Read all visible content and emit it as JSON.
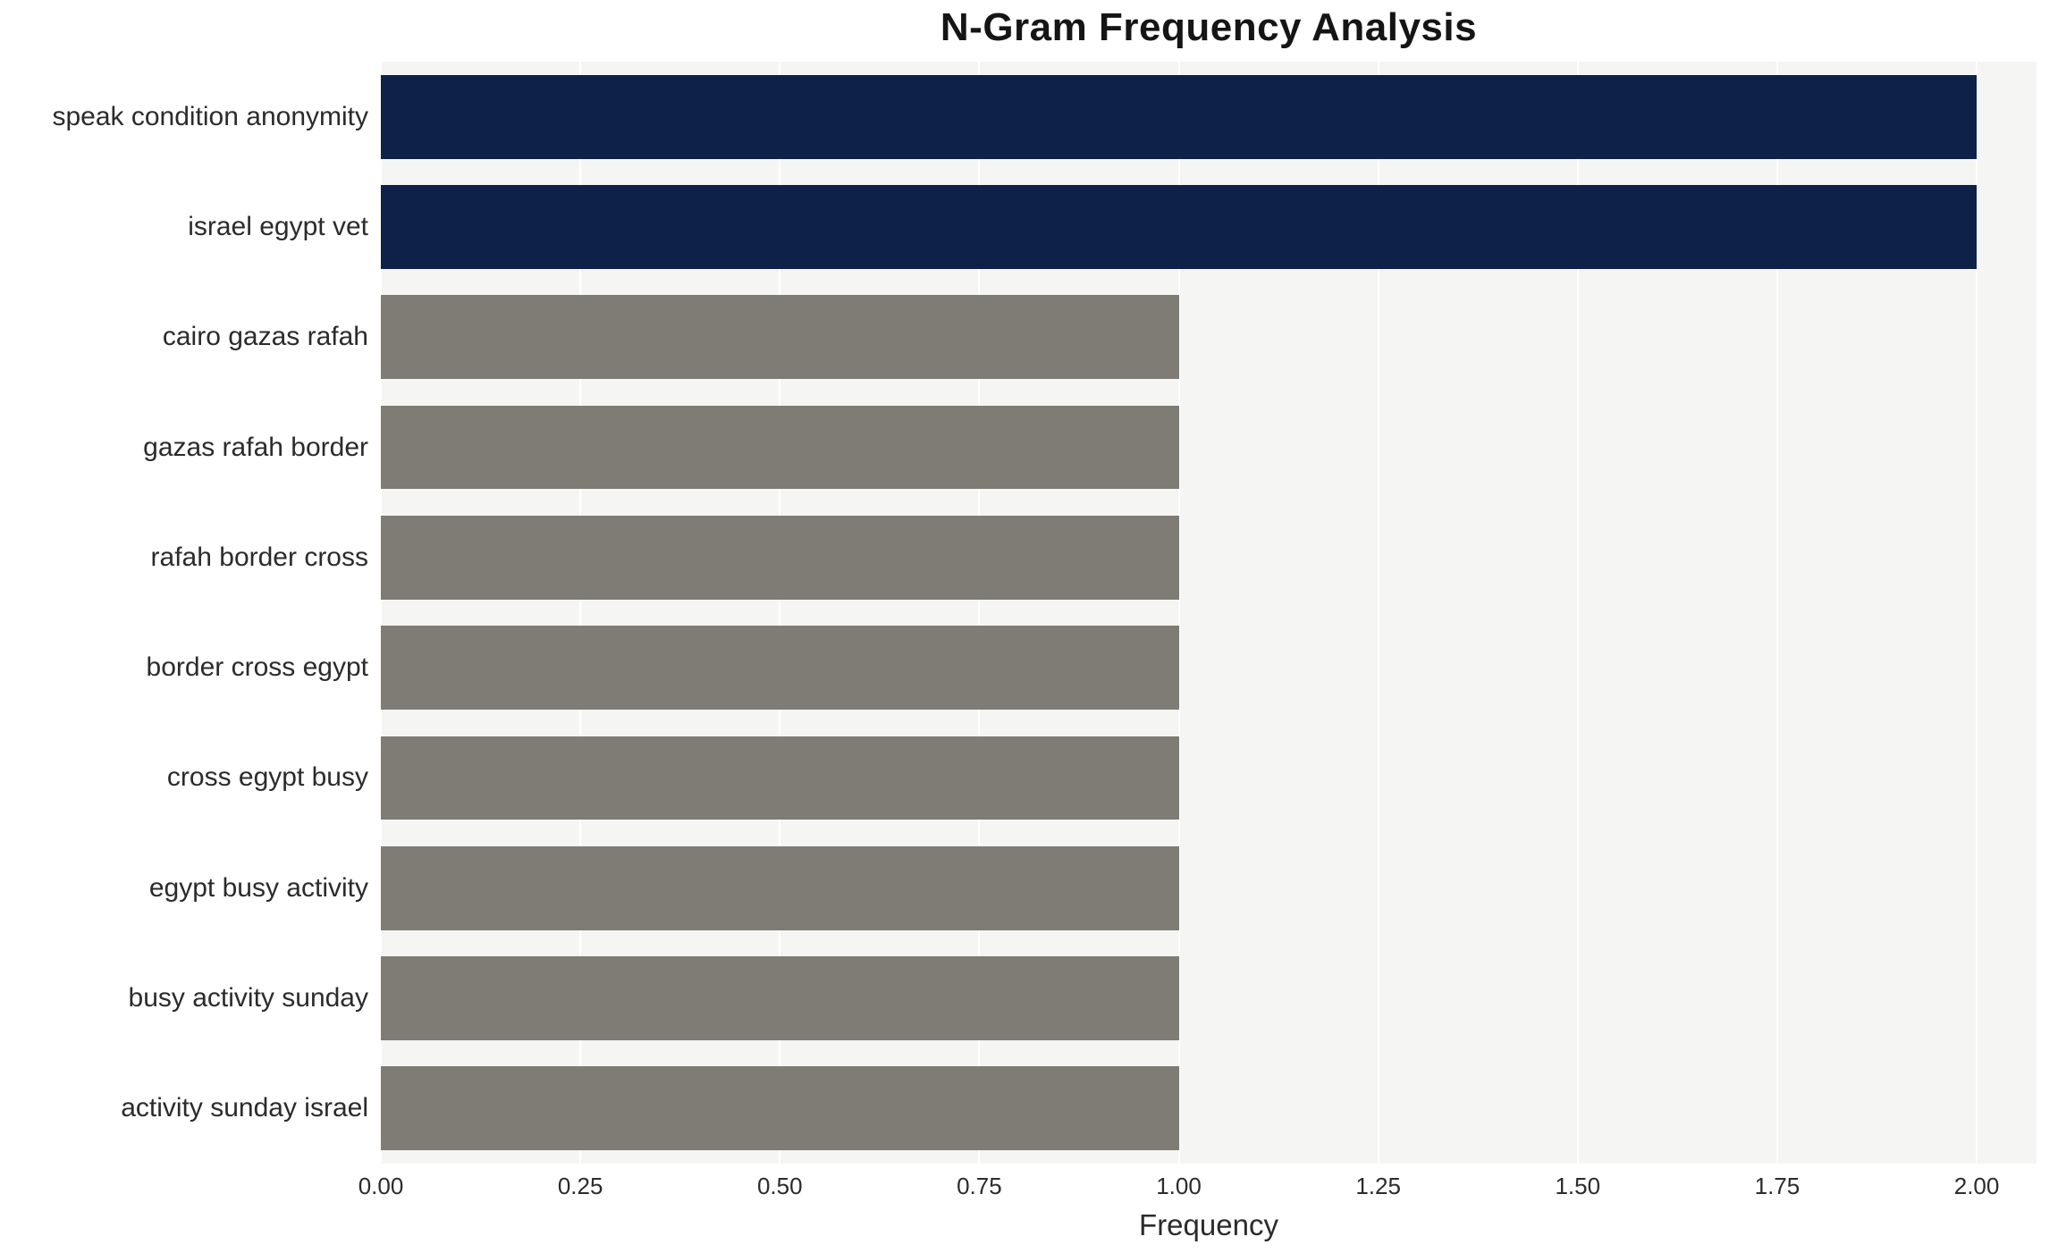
{
  "chart": {
    "title": "N-Gram Frequency Analysis",
    "xlabel": "Frequency"
  },
  "chart_data": {
    "type": "bar",
    "orientation": "horizontal",
    "title": "N-Gram Frequency Analysis",
    "xlabel": "Frequency",
    "ylabel": "",
    "categories": [
      "speak condition anonymity",
      "israel egypt vet",
      "cairo gazas rafah",
      "gazas rafah border",
      "rafah border cross",
      "border cross egypt",
      "cross egypt busy",
      "egypt busy activity",
      "busy activity sunday",
      "activity sunday israel"
    ],
    "values": [
      2,
      2,
      1,
      1,
      1,
      1,
      1,
      1,
      1,
      1
    ],
    "bar_colors": [
      "#0d2149",
      "#0d2149",
      "#7f7c75",
      "#7f7c75",
      "#7f7c75",
      "#7f7c75",
      "#7f7c75",
      "#7f7c75",
      "#7f7c75",
      "#7f7c75"
    ],
    "xlim": [
      0,
      2.075
    ],
    "ticks": [
      0,
      0.25,
      0.5,
      0.75,
      1.0,
      1.25,
      1.5,
      1.75,
      2.0
    ],
    "tick_labels": [
      "0.00",
      "0.25",
      "0.50",
      "0.75",
      "1.00",
      "1.25",
      "1.50",
      "1.75",
      "2.00"
    ],
    "grid": true,
    "legend": "none",
    "plot_background": "#f5f5f4",
    "gridline_color": "#ffffff"
  }
}
